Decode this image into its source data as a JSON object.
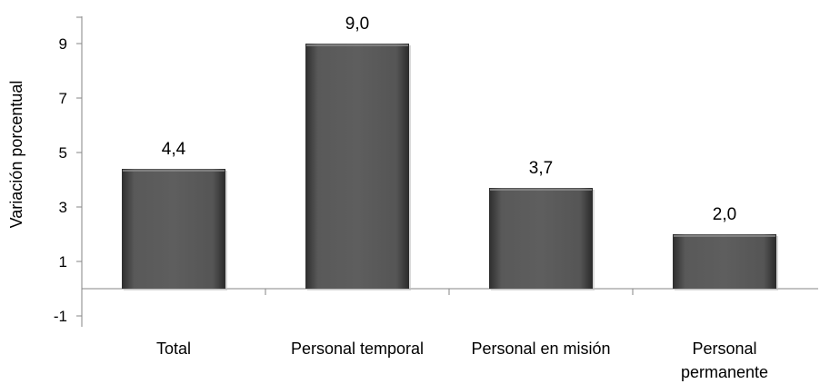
{
  "chart_data": {
    "type": "bar",
    "title": "",
    "xlabel": "",
    "ylabel": "Variación porcentual",
    "categories": [
      "Total",
      "Personal temporal",
      "Personal en misión",
      "Personal permanente"
    ],
    "category_lines": [
      [
        "Total"
      ],
      [
        "Personal temporal"
      ],
      [
        "Personal en misión"
      ],
      [
        "Personal",
        "permanente"
      ]
    ],
    "values": [
      4.4,
      9.0,
      3.7,
      2.0
    ],
    "data_labels": [
      "4,4",
      "9,0",
      "3,7",
      "2,0"
    ],
    "yticks": [
      "-1",
      "1",
      "3",
      "5",
      "7",
      "9"
    ],
    "ylim": [
      -1.4,
      10
    ],
    "grid": false,
    "legend": "none",
    "bar_color": "#4f4f4f"
  }
}
